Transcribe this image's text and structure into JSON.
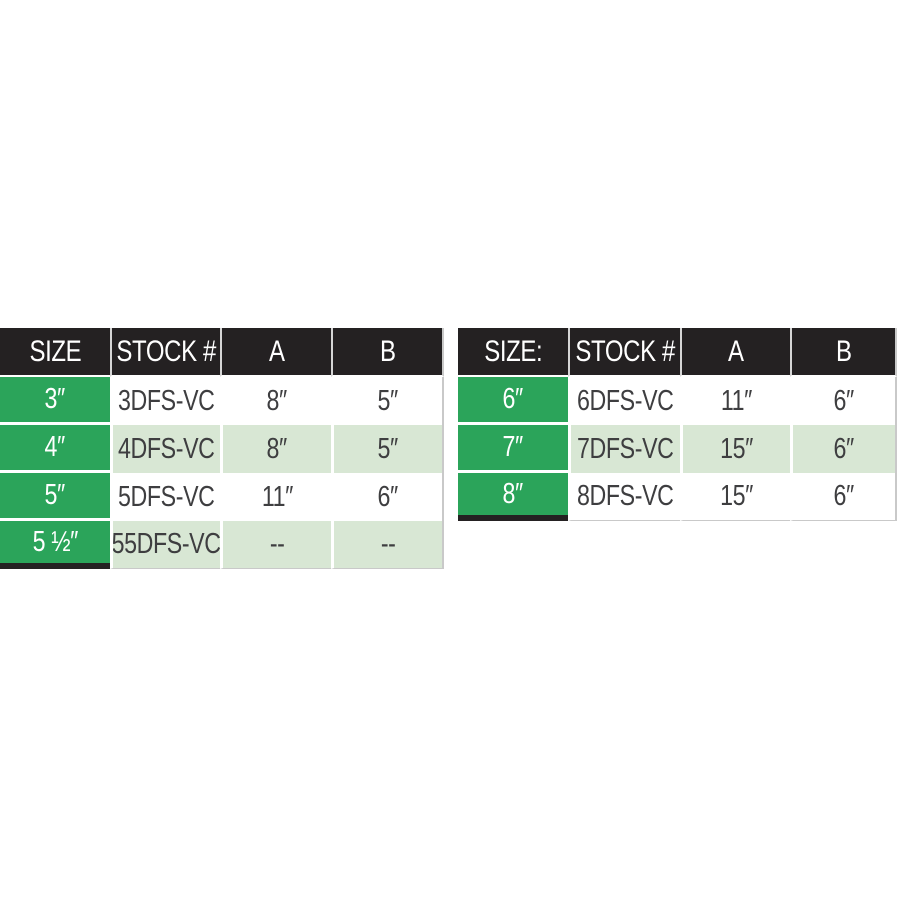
{
  "colors": {
    "size_column_green": "#2ba45a",
    "alt_row_light_green": "#d8e7d4",
    "header_black": "#242122",
    "body_text": "#3e3e40",
    "border_gray": "#c9c9c9",
    "page_background": "#ffffff"
  },
  "chart_data": [
    {
      "type": "table",
      "title": "",
      "columns": [
        "SIZE",
        "STOCK #",
        "A",
        "B"
      ],
      "rows": [
        [
          "3″",
          "3DFS-VC",
          "8″",
          "5″"
        ],
        [
          "4″",
          "4DFS-VC",
          "8″",
          "5″"
        ],
        [
          "5″",
          "5DFS-VC",
          "11″",
          "6″"
        ],
        [
          "5 ½″",
          "55DFS-VC",
          "--",
          "--"
        ]
      ]
    },
    {
      "type": "table",
      "title": "",
      "columns": [
        "SIZE:",
        "STOCK #",
        "A",
        "B"
      ],
      "rows": [
        [
          "6″",
          "6DFS-VC",
          "11″",
          "6″"
        ],
        [
          "7″",
          "7DFS-VC",
          "15″",
          "6″"
        ],
        [
          "8″",
          "8DFS-VC",
          "15″",
          "6″"
        ]
      ]
    }
  ]
}
